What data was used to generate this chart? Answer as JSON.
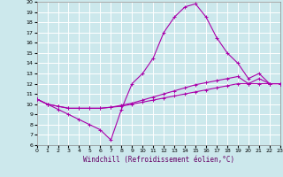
{
  "xlabel": "Windchill (Refroidissement éolien,°C)",
  "bg_color": "#cce8ec",
  "grid_color": "#ffffff",
  "line_color": "#aa00aa",
  "ylim": [
    6,
    20
  ],
  "xlim": [
    0,
    23
  ],
  "yticks": [
    6,
    7,
    8,
    9,
    10,
    11,
    12,
    13,
    14,
    15,
    16,
    17,
    18,
    19,
    20
  ],
  "xticks": [
    0,
    1,
    2,
    3,
    4,
    5,
    6,
    7,
    8,
    9,
    10,
    11,
    12,
    13,
    14,
    15,
    16,
    17,
    18,
    19,
    20,
    21,
    22,
    23
  ],
  "line1_x": [
    0,
    1,
    2,
    3,
    4,
    5,
    6,
    7,
    8,
    9,
    10,
    11,
    12,
    13,
    14,
    15,
    16,
    17,
    18,
    19,
    20,
    21,
    22,
    23
  ],
  "line1_y": [
    10.5,
    10.0,
    9.5,
    9.0,
    8.5,
    8.0,
    7.5,
    6.5,
    9.5,
    12.0,
    13.0,
    14.5,
    17.0,
    18.5,
    19.5,
    19.8,
    18.5,
    16.5,
    15.0,
    14.0,
    12.5,
    13.0,
    12.0,
    12.0
  ],
  "line2_x": [
    0,
    1,
    2,
    3,
    4,
    5,
    6,
    7,
    8,
    9,
    10,
    11,
    12,
    13,
    14,
    15,
    16,
    17,
    18,
    19,
    20,
    21,
    22,
    23
  ],
  "line2_y": [
    10.5,
    10.0,
    9.8,
    9.6,
    9.6,
    9.6,
    9.6,
    9.7,
    9.8,
    10.0,
    10.2,
    10.4,
    10.6,
    10.8,
    11.0,
    11.2,
    11.4,
    11.6,
    11.8,
    12.0,
    12.0,
    12.0,
    12.0,
    12.0
  ],
  "line3_x": [
    0,
    1,
    2,
    3,
    4,
    5,
    6,
    7,
    8,
    9,
    10,
    11,
    12,
    13,
    14,
    15,
    16,
    17,
    18,
    19,
    20,
    21,
    22,
    23
  ],
  "line3_y": [
    10.5,
    10.0,
    9.8,
    9.6,
    9.6,
    9.6,
    9.6,
    9.7,
    9.9,
    10.1,
    10.4,
    10.7,
    11.0,
    11.3,
    11.6,
    11.9,
    12.1,
    12.3,
    12.5,
    12.7,
    12.0,
    12.5,
    12.0,
    12.0
  ]
}
